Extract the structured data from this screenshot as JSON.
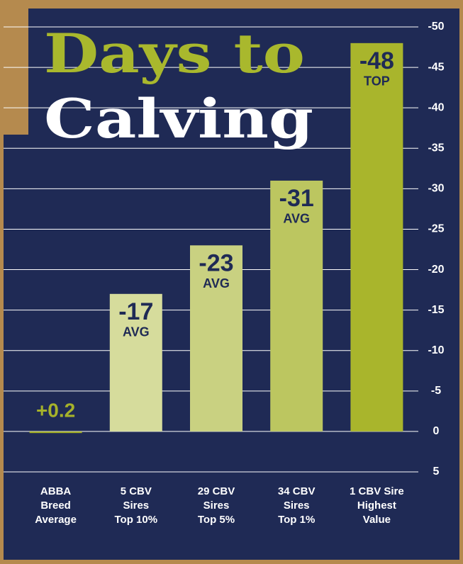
{
  "chart_data": {
    "type": "bar",
    "title_lines": [
      "Days to",
      "Calving"
    ],
    "categories": [
      "ABBA\nBreed\nAverage",
      "5 CBV\nSires\nTop 10%",
      "29 CBV\nSires\nTop 5%",
      "34 CBV\nSires\nTop 1%",
      "1 CBV  Sire\nHighest\nValue"
    ],
    "values": [
      0.2,
      -17,
      -23,
      -31,
      -48
    ],
    "value_labels": [
      "+0.2",
      "-17",
      "-23",
      "-31",
      "-48"
    ],
    "badges": [
      null,
      "AVG",
      "AVG",
      "AVG",
      "TOP"
    ],
    "colors": [
      "#a6b22a",
      "#d6dc9c",
      "#c9d181",
      "#bcc660",
      "#a9b52c"
    ],
    "ylim": [
      5,
      -50
    ],
    "yticks": [
      -50,
      -45,
      -40,
      -35,
      -30,
      -25,
      -20,
      -15,
      -10,
      -5,
      0,
      5
    ],
    "grid": true
  }
}
